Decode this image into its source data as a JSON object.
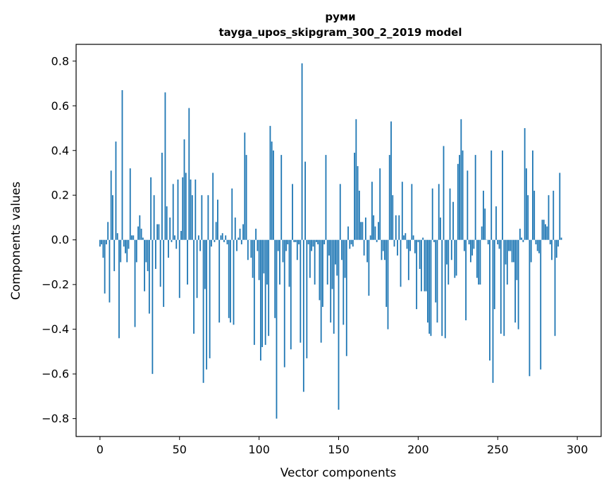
{
  "chart_data": {
    "type": "bar",
    "title": "руми",
    "subtitle": "tayga_upos_skipgram_300_2_2019 model",
    "xlabel": "Vector components",
    "ylabel": "Components values",
    "xlim": [
      -15,
      315
    ],
    "ylim": [
      -0.88,
      0.875
    ],
    "xticks": [
      0,
      50,
      100,
      150,
      200,
      250,
      300
    ],
    "yticks": [
      -0.8,
      -0.6,
      -0.4,
      -0.2,
      0.0,
      0.2,
      0.4,
      0.6,
      0.8
    ],
    "ytick_labels": [
      "−0.8",
      "−0.6",
      "−0.4",
      "−0.2",
      "0.0",
      "0.2",
      "0.4",
      "0.6",
      "0.8"
    ],
    "xtick_labels": [
      "0",
      "50",
      "100",
      "150",
      "200",
      "250",
      "300"
    ],
    "bar_color": "#1f77b4",
    "x_start": 0,
    "values": [
      -0.03,
      -0.02,
      -0.08,
      -0.24,
      -0.02,
      0.08,
      -0.28,
      0.31,
      0.2,
      -0.14,
      0.44,
      0.03,
      -0.44,
      -0.1,
      0.67,
      -0.03,
      -0.06,
      -0.1,
      -0.04,
      0.32,
      0.02,
      0.02,
      -0.39,
      -0.1,
      0.06,
      0.11,
      0.05,
      0.01,
      -0.23,
      -0.1,
      -0.14,
      -0.33,
      0.28,
      -0.6,
      0.2,
      -0.13,
      0.07,
      0.07,
      -0.21,
      0.39,
      -0.3,
      0.66,
      0.15,
      -0.08,
      0.1,
      -0.01,
      0.25,
      0.02,
      -0.04,
      0.27,
      -0.26,
      0.04,
      0.28,
      0.45,
      0.3,
      -0.2,
      0.59,
      0.27,
      0.2,
      -0.42,
      0.27,
      -0.26,
      0.02,
      -0.05,
      0.2,
      -0.64,
      -0.22,
      -0.58,
      0.2,
      -0.53,
      -0.03,
      0.3,
      -0.01,
      0.08,
      0.18,
      -0.37,
      0.02,
      0.03,
      -0.01,
      0.02,
      -0.02,
      -0.35,
      -0.37,
      0.23,
      -0.38,
      0.1,
      -0.05,
      0.01,
      0.05,
      -0.02,
      0.07,
      0.48,
      0.38,
      -0.09,
      0.0,
      -0.08,
      -0.17,
      -0.47,
      0.05,
      -0.05,
      -0.18,
      -0.54,
      -0.48,
      -0.15,
      -0.47,
      -0.2,
      -0.43,
      0.51,
      0.44,
      0.4,
      -0.35,
      -0.8,
      -0.05,
      -0.2,
      0.38,
      -0.1,
      -0.57,
      -0.05,
      -0.02,
      -0.21,
      -0.49,
      0.25,
      -0.01,
      -0.01,
      -0.09,
      -0.02,
      -0.46,
      0.79,
      -0.68,
      0.35,
      -0.53,
      -0.02,
      -0.17,
      -0.05,
      -0.03,
      -0.2,
      -0.01,
      -0.02,
      -0.27,
      -0.46,
      -0.3,
      -0.02,
      0.38,
      -0.2,
      -0.07,
      -0.37,
      -0.22,
      -0.42,
      -0.11,
      -0.16,
      -0.76,
      0.25,
      -0.09,
      -0.38,
      -0.17,
      -0.52,
      0.06,
      -0.04,
      -0.02,
      -0.03,
      0.39,
      0.54,
      0.33,
      0.22,
      0.08,
      0.08,
      -0.07,
      0.1,
      -0.1,
      -0.25,
      0.02,
      0.26,
      0.11,
      0.06,
      -0.01,
      0.08,
      0.32,
      -0.09,
      -0.05,
      -0.09,
      -0.3,
      -0.4,
      0.38,
      0.53,
      0.2,
      -0.03,
      0.11,
      -0.07,
      0.11,
      -0.21,
      0.26,
      0.02,
      0.03,
      -0.04,
      -0.18,
      -0.05,
      0.25,
      0.02,
      -0.06,
      -0.31,
      -0.01,
      -0.13,
      -0.23,
      0.01,
      -0.23,
      -0.23,
      -0.37,
      -0.42,
      -0.43,
      0.23,
      -0.01,
      -0.28,
      -0.37,
      0.25,
      0.1,
      -0.43,
      0.42,
      -0.44,
      -0.11,
      -0.2,
      0.23,
      -0.09,
      0.17,
      -0.17,
      -0.16,
      0.34,
      0.38,
      0.54,
      0.4,
      -0.05,
      -0.36,
      0.31,
      -0.02,
      -0.1,
      -0.07,
      -0.04,
      0.38,
      -0.17,
      -0.2,
      -0.2,
      0.06,
      0.22,
      0.14,
      0.0,
      -0.02,
      -0.54,
      0.4,
      -0.64,
      -0.31,
      0.15,
      -0.02,
      -0.04,
      -0.42,
      0.4,
      -0.43,
      -0.11,
      -0.2,
      -0.05,
      -0.05,
      -0.1,
      -0.1,
      -0.37,
      -0.18,
      -0.4,
      0.05,
      0.01,
      -0.01,
      0.5,
      0.32,
      0.2,
      -0.61,
      -0.1,
      0.4,
      0.22,
      -0.02,
      -0.05,
      -0.06,
      -0.58,
      0.09,
      0.09,
      0.07,
      0.06,
      0.2,
      -0.02,
      -0.09,
      0.22,
      -0.43,
      -0.08,
      -0.03,
      0.3,
      0.01
    ]
  }
}
